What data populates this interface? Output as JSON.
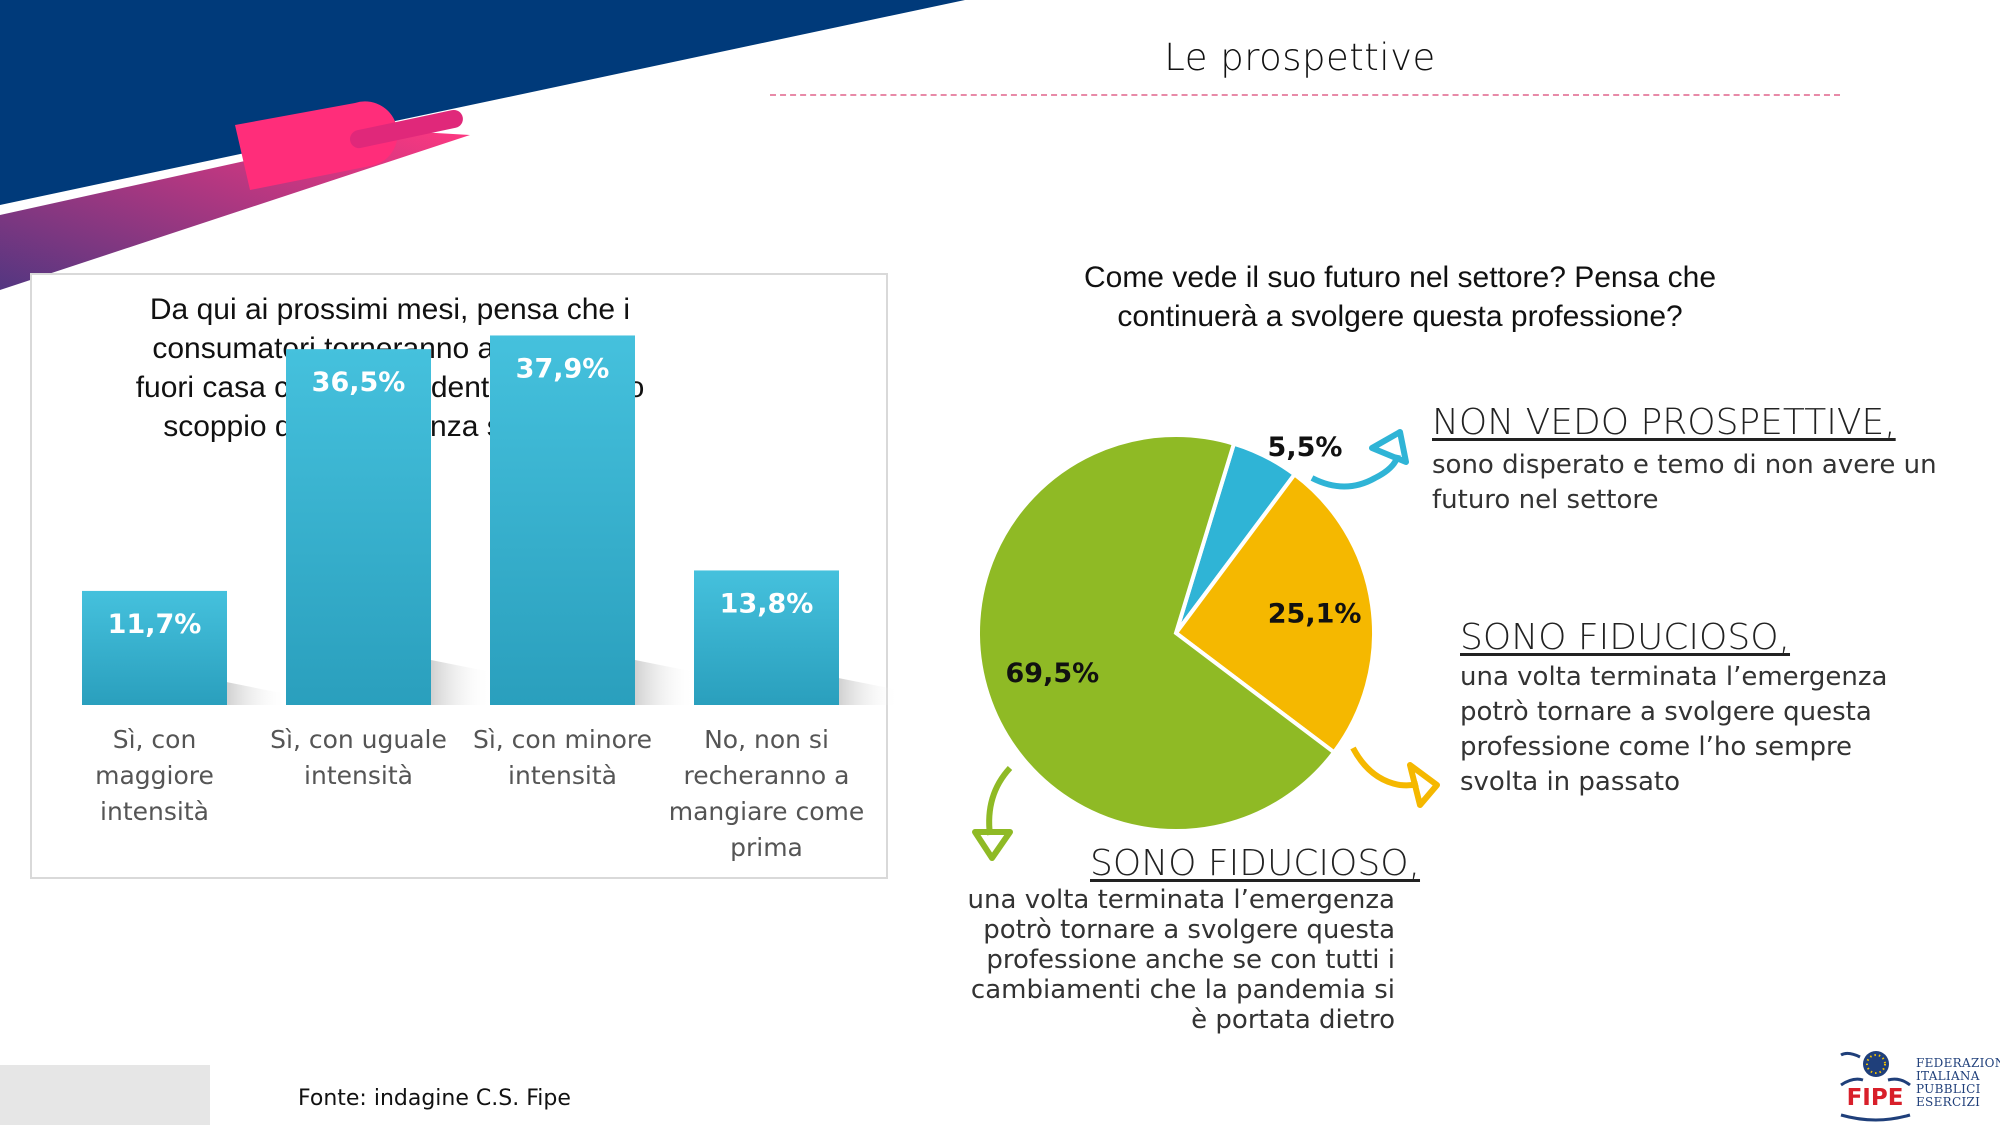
{
  "page": {
    "title": "Le prospettive",
    "source": "Fonte: indagine C.S. Fipe"
  },
  "colors": {
    "navy": "#003a7a",
    "pink": "#ff2d7a",
    "purple": "#6b3a8c",
    "bar": "#3bb3cf",
    "pie_blue": "#2fb4d6",
    "pie_yellow": "#f5b800",
    "pie_green": "#8fba25"
  },
  "chart_data": [
    {
      "type": "bar",
      "title": "Da qui ai prossimi mesi, pensa che i consumatori torneranno a mangiare fuori casa come precedentemente allo scoppio dell’emergenza sanitaria?",
      "categories": [
        "Sì, con maggiore intensità",
        "Sì, con uguale intensità",
        "Sì, con minore intensità",
        "No, non si recheranno a mangiare come prima"
      ],
      "values": [
        11.7,
        36.5,
        37.9,
        13.8
      ],
      "value_labels": [
        "11,7%",
        "36,5%",
        "37,9%",
        "13,8%"
      ],
      "ylim": [
        0,
        40
      ],
      "grid": false
    },
    {
      "type": "pie",
      "title": "Come vede il suo futuro nel settore? Pensa che continuerà a svolgere questa professione?",
      "slices": [
        {
          "label": "NON VEDO PROSPETTIVE,",
          "value": 5.5,
          "value_label": "5,5%",
          "color": "#2fb4d6",
          "description": "sono disperato e temo di non avere un futuro nel settore"
        },
        {
          "label": "SONO FIDUCIOSO,",
          "value": 25.1,
          "value_label": "25,1%",
          "color": "#f5b800",
          "description": "una volta terminata l’emergenza potrò tornare a svolgere questa professione come l’ho sempre svolta in passato"
        },
        {
          "label": "SONO FIDUCIOSO,",
          "value": 69.5,
          "value_label": "69,5%",
          "color": "#8fba25",
          "description": "una volta terminata l’emergenza potrò tornare a svolgere questa professione anche se con tutti i cambiamenti che la pandemia si è portata dietro"
        }
      ]
    }
  ],
  "logo": {
    "wordmark": "FIPE",
    "lines": [
      "FEDERAZIONE",
      "ITALIANA",
      "PUBBLICI",
      "ESERCIZI"
    ]
  }
}
